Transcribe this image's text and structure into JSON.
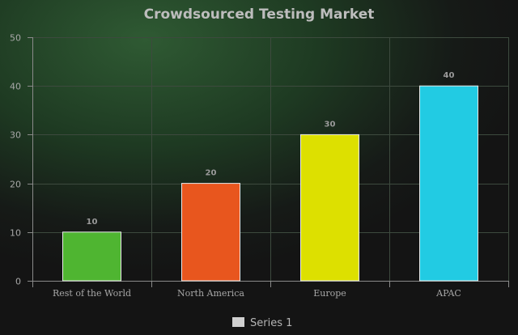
{
  "chart_data": {
    "type": "bar",
    "title": "Crowdsourced Testing Market",
    "categories": [
      "Rest of the World",
      "North America",
      "Europe",
      "APAC"
    ],
    "series": [
      {
        "name": "Series 1",
        "values": [
          10,
          20,
          30,
          40
        ],
        "colors": [
          "#4fb531",
          "#e8561e",
          "#dde000",
          "#22cbe3"
        ]
      }
    ],
    "ylim": [
      0,
      50
    ],
    "yticks": [
      0,
      10,
      20,
      30,
      40,
      50
    ],
    "grid": true,
    "legend_position": "bottom-center",
    "data_labels": true
  },
  "colors": {
    "grid": "#3d4a3e",
    "axis": "#8a8a8a",
    "bar_stroke": "#e8e8e8",
    "legend_swatch": "#d0d0d0"
  }
}
